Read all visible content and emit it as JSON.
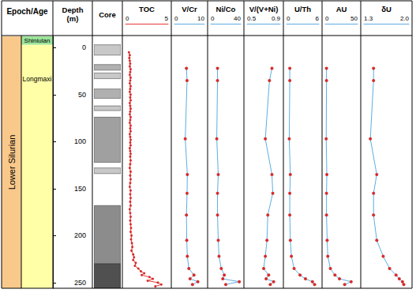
{
  "chart_data": {
    "type": "well_log",
    "header": {
      "epoch_age": "Epoch/Age",
      "depth": "Depth\n(m)",
      "core": "Core"
    },
    "ylim": [
      -12,
      256
    ],
    "yticks": [
      0,
      50,
      100,
      150,
      200,
      250
    ],
    "epochs": [
      {
        "name": "Lower Silurian",
        "top": -12,
        "bottom": 256,
        "color": "#f9c98b"
      }
    ],
    "ages": [
      {
        "name": "Shiniulan",
        "top": -12,
        "bottom": -3,
        "color": "#9be59b"
      },
      {
        "name": "Longmaxi",
        "top": -3,
        "bottom": 256,
        "color": "#ffffa8"
      }
    ],
    "core": [
      {
        "top": -3,
        "bottom": 8,
        "color": "#c8c8c8"
      },
      {
        "top": 18,
        "bottom": 24,
        "color": "#b0b0b0"
      },
      {
        "top": 27,
        "bottom": 33,
        "color": "#c8c8c8"
      },
      {
        "top": 44,
        "bottom": 54,
        "color": "#b0b0b0"
      },
      {
        "top": 62,
        "bottom": 67,
        "color": "#c8c8c8"
      },
      {
        "top": 74,
        "bottom": 122,
        "color": "#a0a0a0"
      },
      {
        "top": 128,
        "bottom": 134,
        "color": "#c8c8c8"
      },
      {
        "top": 168,
        "bottom": 230,
        "color": "#8c8c8c"
      },
      {
        "top": 230,
        "bottom": 256,
        "color": "#505050"
      }
    ],
    "panels": [
      {
        "name": "TOC",
        "type": "line",
        "color": "#e53935",
        "marker": "circle",
        "xlim": [
          0,
          5
        ],
        "xticks": [
          0,
          5
        ],
        "depth": [
          5,
          8,
          11,
          14,
          17,
          20,
          23,
          26,
          29,
          32,
          35,
          38,
          41,
          44,
          47,
          50,
          53,
          56,
          59,
          62,
          65,
          68,
          71,
          74,
          77,
          80,
          83,
          86,
          89,
          92,
          95,
          98,
          101,
          104,
          107,
          110,
          113,
          116,
          120,
          124,
          128,
          132,
          136,
          140,
          144,
          148,
          152,
          156,
          160,
          164,
          168,
          172,
          176,
          180,
          184,
          188,
          192,
          196,
          200,
          204,
          208,
          212,
          216,
          220,
          223,
          226,
          229,
          232,
          235,
          238,
          240,
          242,
          244,
          246,
          248,
          250,
          252,
          254
        ],
        "values": [
          0.4,
          0.5,
          0.45,
          0.5,
          0.55,
          0.5,
          0.6,
          0.55,
          0.5,
          0.6,
          0.55,
          0.5,
          0.6,
          0.55,
          0.5,
          0.6,
          0.55,
          0.6,
          0.5,
          0.55,
          0.6,
          0.55,
          0.5,
          0.6,
          0.55,
          0.5,
          0.6,
          0.55,
          0.6,
          0.5,
          0.55,
          0.6,
          0.55,
          0.6,
          0.5,
          0.55,
          0.6,
          0.55,
          0.6,
          0.55,
          0.5,
          0.6,
          0.55,
          0.6,
          0.55,
          0.5,
          0.6,
          0.55,
          0.6,
          0.55,
          0.6,
          0.5,
          0.55,
          0.6,
          0.55,
          0.6,
          0.65,
          0.6,
          0.7,
          0.65,
          0.75,
          0.8,
          0.7,
          0.9,
          1.0,
          0.9,
          1.2,
          1.1,
          1.5,
          1.8,
          2.2,
          1.9,
          2.8,
          3.2,
          2.6,
          3.8,
          4.2,
          3.5
        ]
      },
      {
        "name": "V/Cr",
        "type": "line",
        "color": "#5dade2",
        "marker": "circle",
        "xlim": [
          0,
          10
        ],
        "xticks": [
          0,
          10
        ],
        "depth": [
          22,
          35,
          97,
          135,
          155,
          178,
          205,
          222,
          235,
          242,
          246,
          249,
          252
        ],
        "values": [
          4.0,
          4.2,
          3.6,
          4.3,
          4.2,
          4.0,
          4.1,
          4.3,
          4.8,
          6.5,
          5.2,
          7.8,
          6.0
        ]
      },
      {
        "name": "Ni/Co",
        "type": "line",
        "color": "#5dade2",
        "marker": "circle",
        "xlim": [
          0,
          40
        ],
        "xticks": [
          0,
          40
        ],
        "depth": [
          22,
          35,
          97,
          135,
          155,
          178,
          205,
          222,
          235,
          242,
          246,
          249,
          252
        ],
        "values": [
          9,
          9,
          8,
          10,
          9,
          9,
          10,
          11,
          14,
          18,
          16,
          38,
          20
        ]
      },
      {
        "name": "V/(V+Ni)",
        "type": "line",
        "color": "#5dade2",
        "marker": "circle",
        "xlim": [
          0.5,
          0.9
        ],
        "xticks": [
          0.5,
          0.9
        ],
        "depth": [
          22,
          35,
          97,
          135,
          155,
          178,
          205,
          222,
          235,
          242,
          246,
          249,
          252
        ],
        "values": [
          0.8,
          0.77,
          0.72,
          0.8,
          0.81,
          0.75,
          0.74,
          0.72,
          0.7,
          0.76,
          0.73,
          0.82,
          0.78
        ]
      },
      {
        "name": "U/Th",
        "type": "line",
        "color": "#5dade2",
        "marker": "circle",
        "xlim": [
          0,
          6
        ],
        "xticks": [
          0,
          6
        ],
        "depth": [
          22,
          35,
          97,
          135,
          155,
          178,
          205,
          222,
          235,
          242,
          246,
          249,
          252
        ],
        "values": [
          0.6,
          0.6,
          0.5,
          0.7,
          0.6,
          0.6,
          0.7,
          0.9,
          1.4,
          2.5,
          3.5,
          4.8,
          5.2
        ]
      },
      {
        "name": "AU",
        "type": "line",
        "color": "#5dade2",
        "marker": "circle",
        "xlim": [
          0,
          50
        ],
        "xticks": [
          0,
          50
        ],
        "depth": [
          22,
          35,
          97,
          135,
          155,
          178,
          205,
          222,
          235,
          242,
          246,
          249,
          252
        ],
        "values": [
          2,
          2,
          1.5,
          2.5,
          2,
          2,
          3,
          4,
          8,
          15,
          22,
          40,
          30
        ]
      },
      {
        "name": "δU",
        "type": "line",
        "color": "#5dade2",
        "marker": "circle",
        "xlim": [
          1.3,
          2.0
        ],
        "xticks": [
          1.3,
          {
            "value": 2,
            "label": "2.0"
          }
        ],
        "depth": [
          22,
          35,
          97,
          135,
          155,
          178,
          205,
          222,
          235,
          242,
          246,
          249,
          252
        ],
        "values": [
          1.45,
          1.45,
          1.4,
          1.5,
          1.45,
          1.45,
          1.5,
          1.6,
          1.7,
          1.8,
          1.85,
          1.9,
          1.92
        ]
      }
    ]
  }
}
